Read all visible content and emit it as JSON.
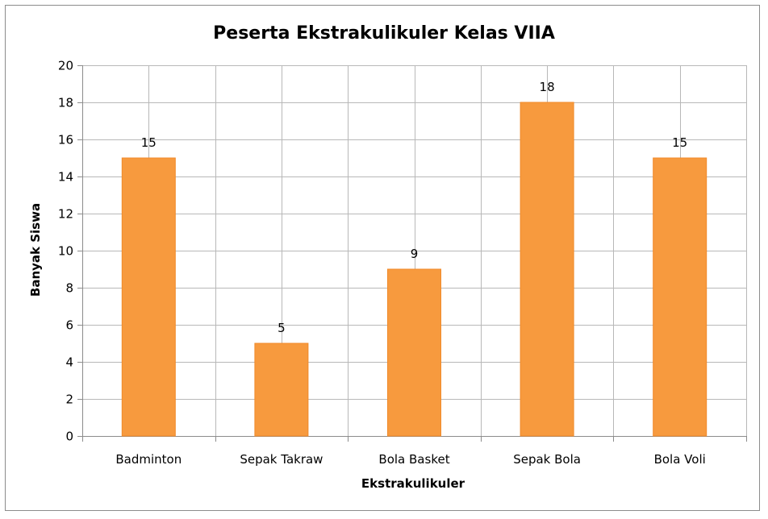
{
  "chart_data": {
    "type": "bar",
    "title": "Peserta Ekstrakulikuler Kelas VIIA",
    "xlabel": "Ekstrakulikuler",
    "ylabel": "Banyak Siswa",
    "categories": [
      "Badminton",
      "Sepak Takraw",
      "Bola Basket",
      "Sepak Bola",
      "Bola Voli"
    ],
    "values": [
      15,
      5,
      9,
      18,
      15
    ],
    "data_labels": [
      "15",
      "5",
      "9",
      "18",
      "15"
    ],
    "ylim": [
      0,
      20
    ],
    "yticks": [
      0,
      2,
      4,
      6,
      8,
      10,
      12,
      14,
      16,
      18,
      20
    ],
    "grid": true,
    "legend": "none",
    "colors": {
      "bar": "#F79A3E",
      "bar_edge": "#F08A2A",
      "grid": "#b8b8b8",
      "axis": "#8c8c8c",
      "frame": "#8c8c8c"
    }
  }
}
